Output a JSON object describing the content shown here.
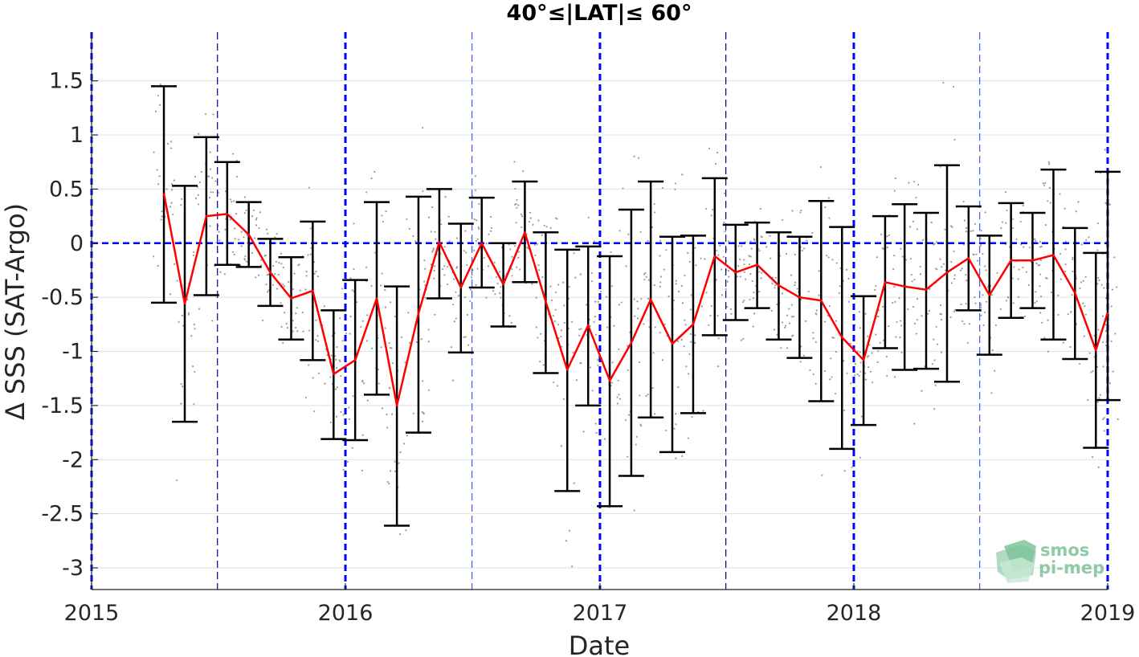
{
  "chart_data": {
    "type": "line",
    "title": "40°≤|LAT|≤ 60°",
    "xlabel": "Date",
    "ylabel": "Δ SSS (SAT-Argo)",
    "xlim": [
      "2015-01-01",
      "2019-01-01"
    ],
    "ylim": [
      -3.2,
      1.95
    ],
    "x_tick_labels": [
      "2015",
      "2016",
      "2017",
      "2018",
      "2019"
    ],
    "y_ticks": [
      -3,
      -2.5,
      -2,
      -1.5,
      -1,
      -0.5,
      0,
      0.5,
      1,
      1.5
    ],
    "y_tick_labels": [
      "-3",
      "-2.5",
      "-2",
      "-1.5",
      "-1",
      "-0.5",
      "0",
      "0.5",
      "1",
      "1.5"
    ],
    "grid": true,
    "colors": {
      "mean_line": "#ff0000",
      "error_bar": "#000000",
      "reference_line": "#0000ff",
      "scatter": "#9a9a9a"
    },
    "reference_line_y": 0,
    "year_boundary_lines": [
      "2015-01-01",
      "2016-01-01",
      "2017-01-01",
      "2018-01-01",
      "2019-01-01"
    ],
    "half_year_lines": [
      "2015-07-01",
      "2016-07-01",
      "2017-07-01",
      "2018-07-01"
    ],
    "series": [
      {
        "x": [
          "2015-04-15",
          "2015-05-15",
          "2015-06-15",
          "2015-07-15",
          "2015-08-15",
          "2015-09-15",
          "2015-10-15",
          "2015-11-15",
          "2015-12-15",
          "2016-01-15",
          "2016-02-15",
          "2016-03-15",
          "2016-04-15",
          "2016-05-15",
          "2016-06-15",
          "2016-07-15",
          "2016-08-15",
          "2016-09-15",
          "2016-10-15",
          "2016-11-15",
          "2016-12-15",
          "2017-01-15",
          "2017-02-15",
          "2017-03-15",
          "2017-04-15",
          "2017-05-15",
          "2017-06-15",
          "2017-07-15",
          "2017-08-15",
          "2017-09-15",
          "2017-10-15",
          "2017-11-15",
          "2017-12-15",
          "2018-01-15",
          "2018-02-15",
          "2018-03-15",
          "2018-04-15",
          "2018-05-15",
          "2018-06-15",
          "2018-07-15",
          "2018-08-15",
          "2018-09-15",
          "2018-10-15",
          "2018-11-15",
          "2018-12-15",
          "2019-01-01"
        ],
        "mean": [
          0.46,
          -0.56,
          0.25,
          0.27,
          0.08,
          -0.27,
          -0.51,
          -0.44,
          -1.21,
          -1.08,
          -0.51,
          -1.5,
          -0.65,
          0.01,
          -0.41,
          0.0,
          -0.38,
          0.1,
          -0.54,
          -1.17,
          -0.76,
          -1.27,
          -0.92,
          -0.52,
          -0.93,
          -0.75,
          -0.12,
          -0.27,
          -0.2,
          -0.39,
          -0.5,
          -0.53,
          -0.87,
          -1.08,
          -0.36,
          -0.4,
          -0.43,
          -0.27,
          -0.14,
          -0.48,
          -0.16,
          -0.16,
          -0.11,
          -0.46,
          -0.99,
          -0.64
        ],
        "upper": [
          1.45,
          0.53,
          0.98,
          0.75,
          0.38,
          0.04,
          -0.13,
          0.2,
          -0.62,
          -0.34,
          0.38,
          -0.4,
          0.43,
          0.5,
          0.18,
          0.42,
          0.0,
          0.57,
          0.1,
          -0.06,
          -0.03,
          -0.12,
          0.31,
          0.57,
          0.06,
          0.07,
          0.6,
          0.17,
          0.19,
          0.1,
          0.06,
          0.39,
          0.15,
          -0.49,
          0.25,
          0.36,
          0.28,
          0.72,
          0.34,
          0.07,
          0.37,
          0.28,
          0.68,
          0.14,
          -0.09,
          0.66
        ],
        "lower": [
          -0.55,
          -1.65,
          -0.48,
          -0.2,
          -0.22,
          -0.58,
          -0.89,
          -1.08,
          -1.81,
          -1.82,
          -1.4,
          -2.61,
          -1.75,
          -0.51,
          -1.01,
          -0.41,
          -0.77,
          -0.36,
          -1.2,
          -2.29,
          -1.5,
          -2.43,
          -2.15,
          -1.61,
          -1.93,
          -1.57,
          -0.85,
          -0.71,
          -0.6,
          -0.89,
          -1.06,
          -1.46,
          -1.9,
          -1.68,
          -0.97,
          -1.17,
          -1.16,
          -1.28,
          -0.62,
          -1.03,
          -0.69,
          -0.6,
          -0.89,
          -1.07,
          -1.89,
          -1.45
        ]
      }
    ]
  },
  "logo": {
    "line1": "smos",
    "line2": "pi-mep"
  }
}
